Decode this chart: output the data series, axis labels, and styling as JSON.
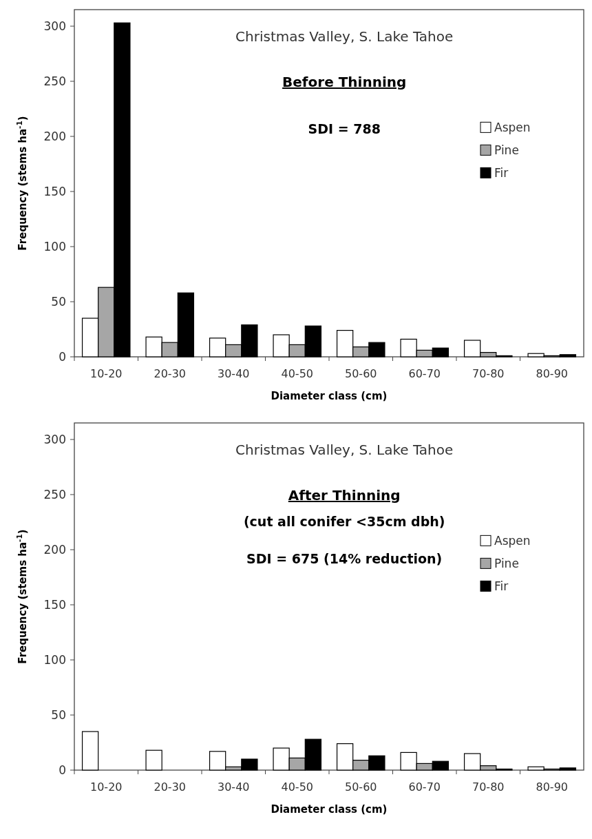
{
  "chart_data": [
    {
      "type": "bar",
      "title": "Christmas Valley, S. Lake Tahoe",
      "subtitle": "Before Thinning",
      "annotations": [
        "SDI = 788"
      ],
      "xlabel": "Diameter class (cm)",
      "ylabel": "Frequency (stems ha$^{-1}$)",
      "categories": [
        "10-20",
        "20-30",
        "30-40",
        "40-50",
        "50-60",
        "60-70",
        "70-80",
        "80-90"
      ],
      "series": [
        {
          "name": "Aspen",
          "color": "#ffffff",
          "values": [
            35,
            18,
            17,
            20,
            24,
            16,
            15,
            3
          ]
        },
        {
          "name": "Pine",
          "color": "#a6a6a6",
          "values": [
            63,
            13,
            11,
            11,
            9,
            6,
            4,
            1
          ]
        },
        {
          "name": "Fir",
          "color": "#000000",
          "values": [
            303,
            58,
            29,
            28,
            13,
            8,
            1,
            2
          ]
        }
      ],
      "ylim": [
        0,
        315
      ],
      "yticks": [
        0,
        50,
        100,
        150,
        200,
        250,
        300
      ],
      "legend": "right"
    },
    {
      "type": "bar",
      "title": "Christmas Valley, S. Lake Tahoe",
      "subtitle": "After Thinning",
      "annotations": [
        "(cut all conifer <35cm dbh)",
        "SDI = 675  (14% reduction)"
      ],
      "xlabel": "Diameter class (cm)",
      "ylabel": "Frequency (stems ha$^{-1}$)",
      "categories": [
        "10-20",
        "20-30",
        "30-40",
        "40-50",
        "50-60",
        "60-70",
        "70-80",
        "80-90"
      ],
      "series": [
        {
          "name": "Aspen",
          "color": "#ffffff",
          "values": [
            35,
            18,
            17,
            20,
            24,
            16,
            15,
            3
          ]
        },
        {
          "name": "Pine",
          "color": "#a6a6a6",
          "values": [
            0,
            0,
            3,
            11,
            9,
            6,
            4,
            1
          ]
        },
        {
          "name": "Fir",
          "color": "#000000",
          "values": [
            0,
            0,
            10,
            28,
            13,
            8,
            1,
            2
          ]
        }
      ],
      "ylim": [
        0,
        315
      ],
      "yticks": [
        0,
        50,
        100,
        150,
        200,
        250,
        300
      ],
      "legend": "right"
    }
  ]
}
